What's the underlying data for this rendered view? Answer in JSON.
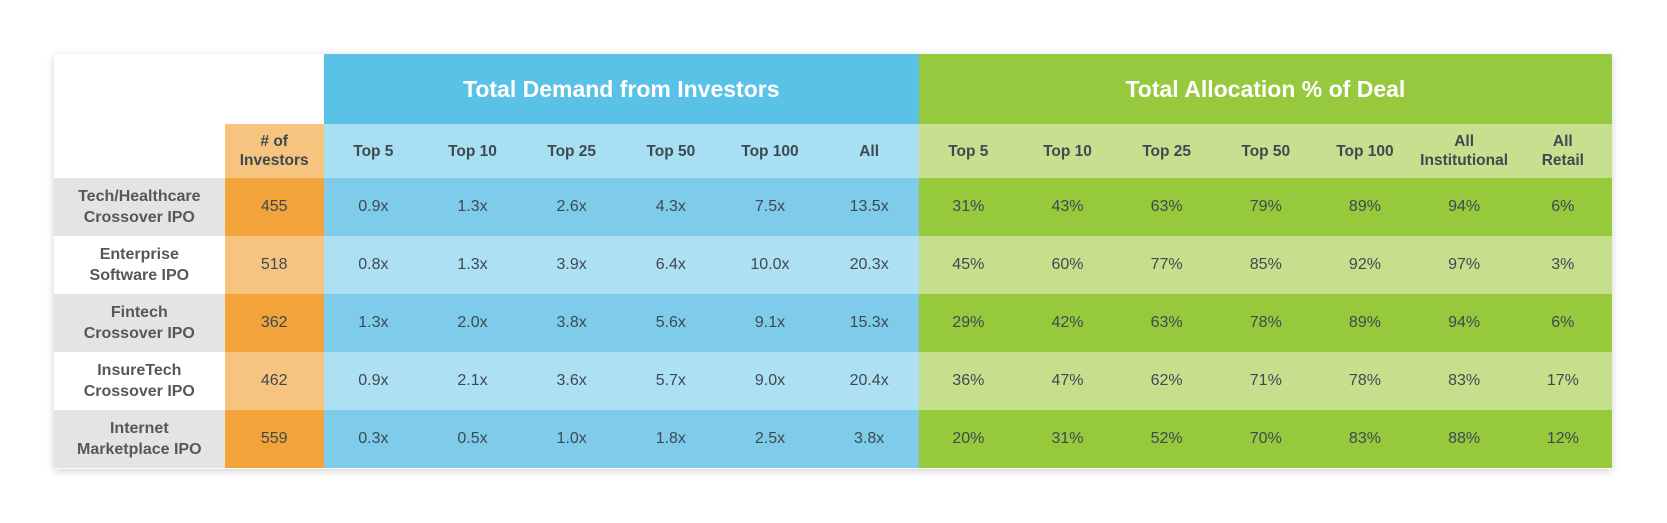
{
  "chart_data": {
    "type": "table",
    "title": "",
    "group_headers": {
      "demand": "Total Demand from Investors",
      "allocation": "Total Allocation % of Deal"
    },
    "investors_header": [
      "# of",
      "Investors"
    ],
    "demand_columns": [
      "Top 5",
      "Top 10",
      "Top 25",
      "Top 50",
      "Top 100",
      "All"
    ],
    "allocation_columns": [
      [
        "Top 5"
      ],
      [
        "Top 10"
      ],
      [
        "Top 25"
      ],
      [
        "Top 50"
      ],
      [
        "Top 100"
      ],
      [
        "All",
        "Institutional"
      ],
      [
        "All",
        "Retail"
      ]
    ],
    "rows": [
      {
        "label": [
          "Tech/Healthcare",
          "Crossover IPO"
        ],
        "investors": "455",
        "demand": [
          "0.9x",
          "1.3x",
          "2.6x",
          "4.3x",
          "7.5x",
          "13.5x"
        ],
        "allocation": [
          "31%",
          "43%",
          "63%",
          "79%",
          "89%",
          "94%",
          "6%"
        ]
      },
      {
        "label": [
          "Enterprise",
          "Software IPO"
        ],
        "investors": "518",
        "demand": [
          "0.8x",
          "1.3x",
          "3.9x",
          "6.4x",
          "10.0x",
          "20.3x"
        ],
        "allocation": [
          "45%",
          "60%",
          "77%",
          "85%",
          "92%",
          "97%",
          "3%"
        ]
      },
      {
        "label": [
          "Fintech",
          "Crossover IPO"
        ],
        "investors": "362",
        "demand": [
          "1.3x",
          "2.0x",
          "3.8x",
          "5.6x",
          "9.1x",
          "15.3x"
        ],
        "allocation": [
          "29%",
          "42%",
          "63%",
          "78%",
          "89%",
          "94%",
          "6%"
        ]
      },
      {
        "label": [
          "InsureTech",
          "Crossover IPO"
        ],
        "investors": "462",
        "demand": [
          "0.9x",
          "2.1x",
          "3.6x",
          "5.7x",
          "9.0x",
          "20.4x"
        ],
        "allocation": [
          "36%",
          "47%",
          "62%",
          "71%",
          "78%",
          "83%",
          "17%"
        ]
      },
      {
        "label": [
          "Internet",
          "Marketplace IPO"
        ],
        "investors": "559",
        "demand": [
          "0.3x",
          "0.5x",
          "1.0x",
          "1.8x",
          "2.5x",
          "3.8x"
        ],
        "allocation": [
          "20%",
          "31%",
          "52%",
          "70%",
          "83%",
          "88%",
          "12%"
        ]
      }
    ]
  },
  "colors": {
    "demand_header": "#5bc2e7",
    "allocation_header": "#96c93d",
    "investors_dark": "#f2a33a",
    "investors_light": "#f6c47f",
    "demand_dark": "#7ecbea",
    "demand_light": "#ade0f3",
    "allocation_dark": "#97c93c",
    "allocation_light": "#c6df8c",
    "label_gray": "#e4e4e4"
  }
}
